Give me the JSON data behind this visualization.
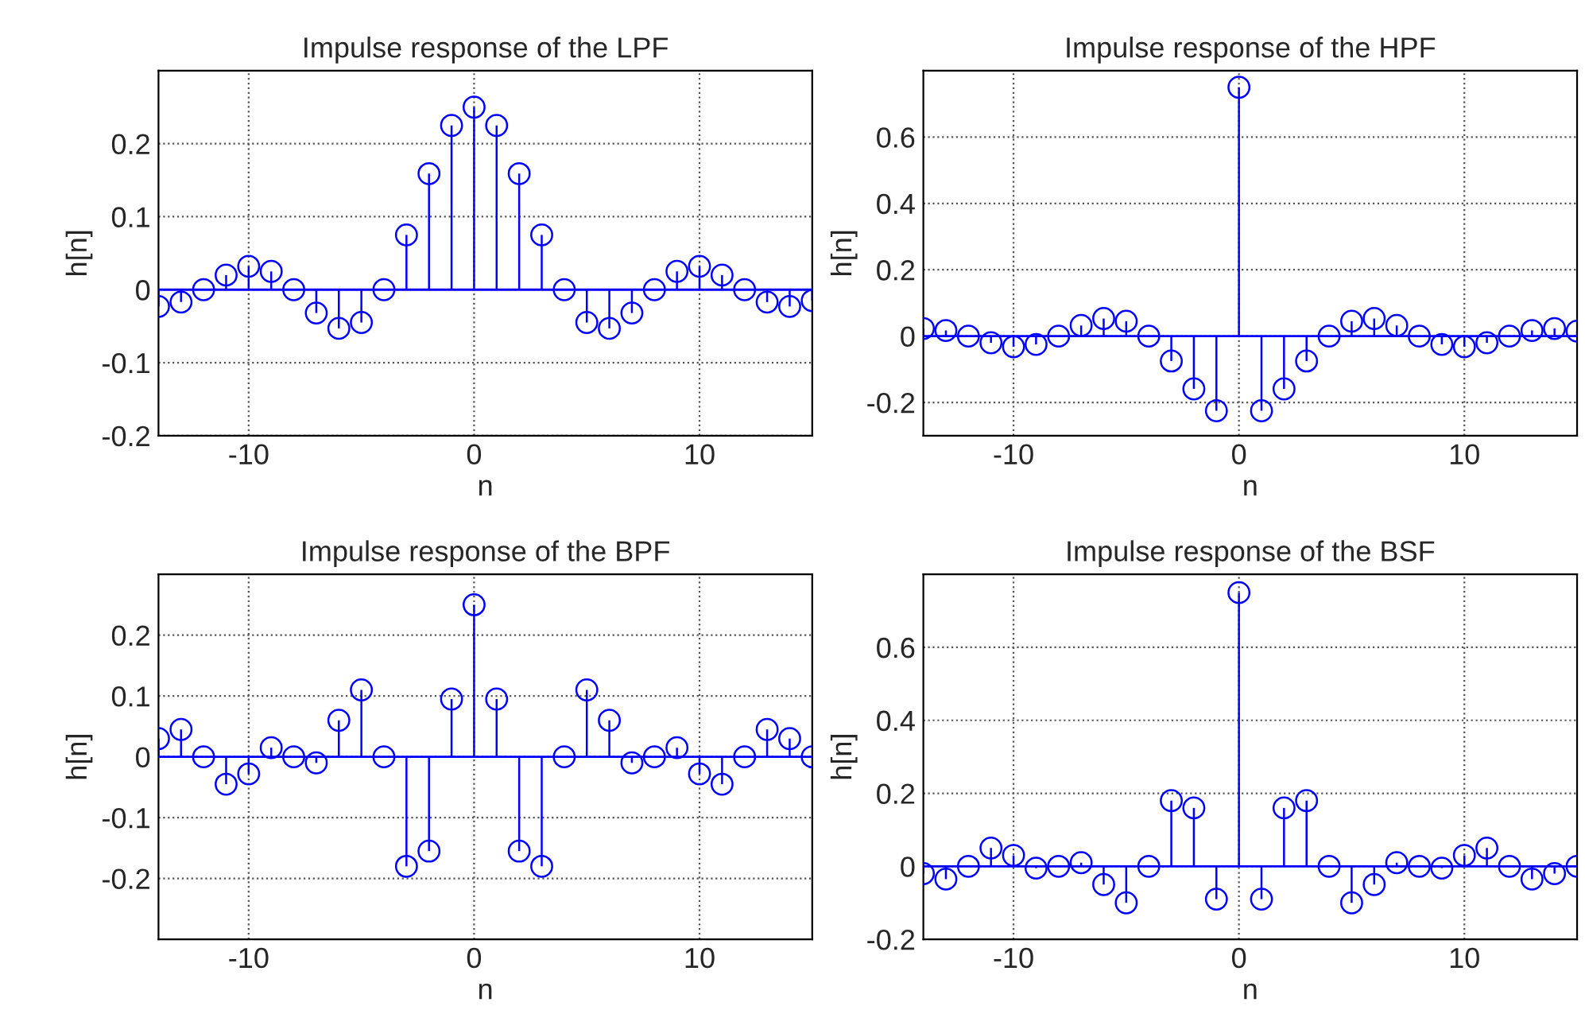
{
  "chart_data": [
    {
      "type": "lollipop",
      "title": "Impulse response of the LPF",
      "xlabel": "n",
      "ylabel": "h[n]",
      "color": "#0000ff",
      "marker": "circle",
      "grid": true,
      "x": [
        -14,
        -13,
        -12,
        -11,
        -10,
        -9,
        -8,
        -7,
        -6,
        -5,
        -4,
        -3,
        -2,
        -1,
        0,
        1,
        2,
        3,
        4,
        5,
        6,
        7,
        8,
        9,
        10,
        11,
        12,
        13,
        14,
        15
      ],
      "values": [
        -0.023,
        -0.017,
        0,
        0.02,
        0.032,
        0.025,
        0,
        -0.032,
        -0.053,
        -0.045,
        0,
        0.075,
        0.159,
        0.225,
        0.25,
        0.225,
        0.159,
        0.075,
        0,
        -0.045,
        -0.053,
        -0.032,
        0,
        0.025,
        0.032,
        0.02,
        0,
        -0.017,
        -0.023,
        -0.015
      ],
      "ref_lines": [
        {
          "axis": "y",
          "value": 0,
          "color": "#0000ff"
        }
      ],
      "xlim": [
        -14,
        15
      ],
      "xticks": [
        -10,
        0,
        10
      ],
      "ylim": [
        -0.2,
        0.3
      ],
      "yticks": [
        -0.2,
        -0.1,
        0,
        0.1,
        0.2
      ]
    },
    {
      "type": "lollipop",
      "title": "Impulse response of the HPF",
      "xlabel": "n",
      "ylabel": "h[n]",
      "color": "#0000ff",
      "marker": "circle",
      "grid": true,
      "x": [
        -14,
        -13,
        -12,
        -11,
        -10,
        -9,
        -8,
        -7,
        -6,
        -5,
        -4,
        -3,
        -2,
        -1,
        0,
        1,
        2,
        3,
        4,
        5,
        6,
        7,
        8,
        9,
        10,
        11,
        12,
        13,
        14,
        15
      ],
      "values": [
        0.023,
        0.017,
        0,
        -0.02,
        -0.032,
        -0.025,
        0,
        0.032,
        0.053,
        0.045,
        0,
        -0.075,
        -0.159,
        -0.225,
        0.75,
        -0.225,
        -0.159,
        -0.075,
        0,
        0.045,
        0.053,
        0.032,
        0,
        -0.025,
        -0.032,
        -0.02,
        0,
        0.017,
        0.023,
        0.015
      ],
      "ref_lines": [
        {
          "axis": "y",
          "value": 0,
          "color": "#0000ff"
        }
      ],
      "xlim": [
        -14,
        15
      ],
      "xticks": [
        -10,
        0,
        10
      ],
      "ylim": [
        -0.3,
        0.8
      ],
      "yticks": [
        -0.2,
        0,
        0.2,
        0.4,
        0.6
      ]
    },
    {
      "type": "lollipop",
      "title": "Impulse response of the BPF",
      "xlabel": "n",
      "ylabel": "h[n]",
      "color": "#0000ff",
      "marker": "circle",
      "grid": true,
      "x": [
        -14,
        -13,
        -12,
        -11,
        -10,
        -9,
        -8,
        -7,
        -6,
        -5,
        -4,
        -3,
        -2,
        -1,
        0,
        1,
        2,
        3,
        4,
        5,
        6,
        7,
        8,
        9,
        10,
        11,
        12,
        13,
        14,
        15
      ],
      "values": [
        0.03,
        0.045,
        0,
        -0.045,
        -0.028,
        0.015,
        0,
        -0.01,
        0.06,
        0.11,
        0,
        -0.18,
        -0.155,
        0.095,
        0.25,
        0.095,
        -0.155,
        -0.18,
        0,
        0.11,
        0.06,
        -0.01,
        0,
        0.015,
        -0.028,
        -0.045,
        0,
        0.045,
        0.03,
        0
      ],
      "ref_lines": [
        {
          "axis": "y",
          "value": 0,
          "color": "#0000ff"
        }
      ],
      "xlim": [
        -14,
        15
      ],
      "xticks": [
        -10,
        0,
        10
      ],
      "ylim": [
        -0.3,
        0.3
      ],
      "yticks": [
        -0.2,
        -0.1,
        0,
        0.1,
        0.2
      ]
    },
    {
      "type": "lollipop",
      "title": "Impulse response of the BSF",
      "xlabel": "n",
      "ylabel": "h[n]",
      "color": "#0000ff",
      "marker": "circle",
      "grid": true,
      "x": [
        -14,
        -13,
        -12,
        -11,
        -10,
        -9,
        -8,
        -7,
        -6,
        -5,
        -4,
        -3,
        -2,
        -1,
        0,
        1,
        2,
        3,
        4,
        5,
        6,
        7,
        8,
        9,
        10,
        11,
        12,
        13,
        14,
        15
      ],
      "values": [
        -0.02,
        -0.035,
        0,
        0.05,
        0.03,
        -0.005,
        0,
        0.01,
        -0.05,
        -0.1,
        0,
        0.18,
        0.16,
        -0.09,
        0.75,
        -0.09,
        0.16,
        0.18,
        0,
        -0.1,
        -0.05,
        0.01,
        0,
        -0.005,
        0.03,
        0.05,
        0,
        -0.035,
        -0.02,
        0
      ],
      "ref_lines": [
        {
          "axis": "y",
          "value": 0,
          "color": "#0000ff"
        }
      ],
      "xlim": [
        -14,
        15
      ],
      "xticks": [
        -10,
        0,
        10
      ],
      "ylim": [
        -0.2,
        0.8
      ],
      "yticks": [
        -0.2,
        0,
        0.2,
        0.4,
        0.6
      ]
    }
  ]
}
